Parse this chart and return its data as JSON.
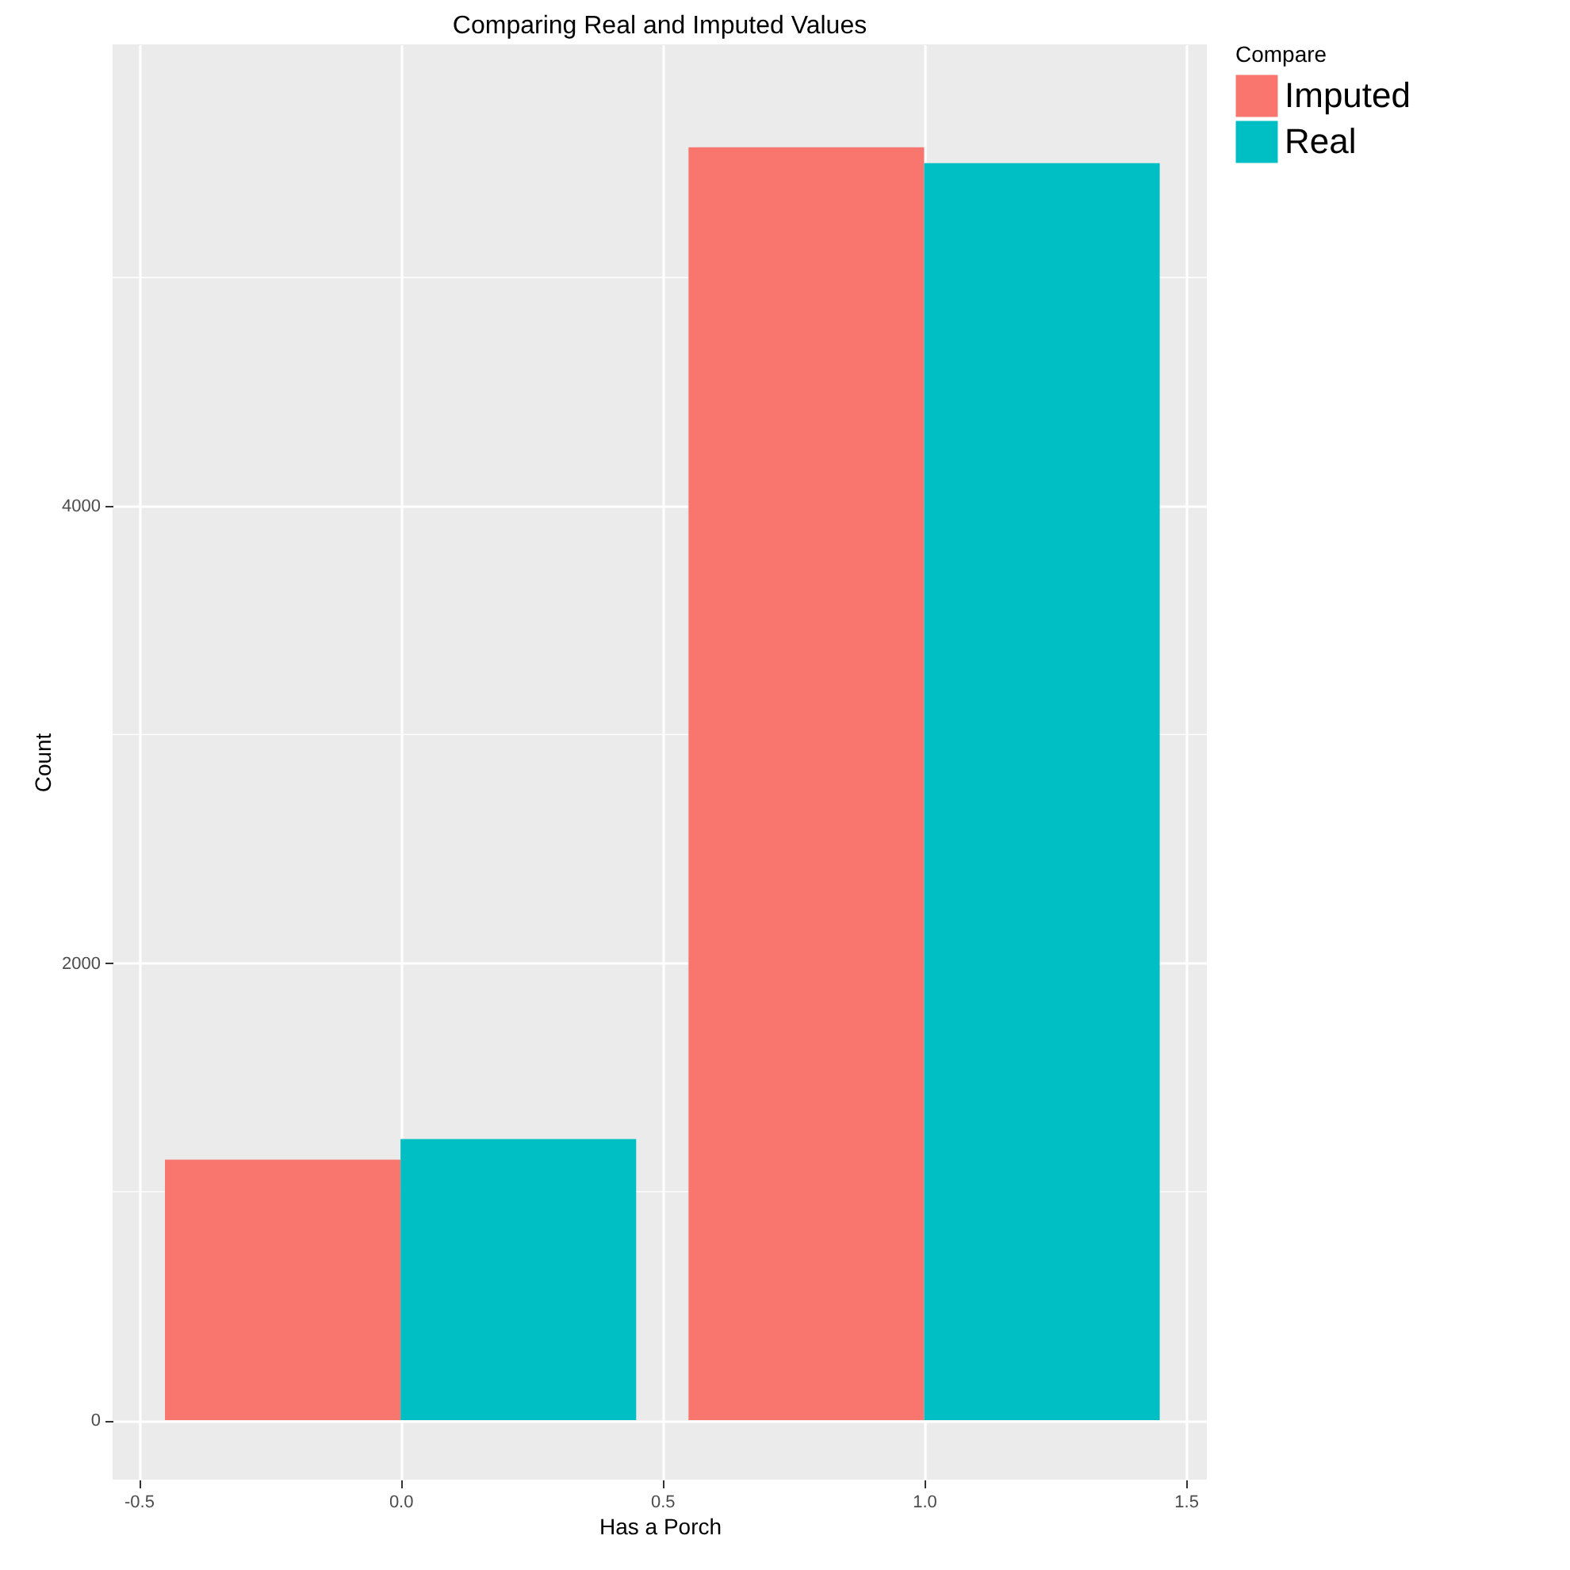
{
  "chart_data": {
    "type": "bar",
    "title": "Comparing Real and Imputed Values",
    "xlabel": "Has a Porch",
    "ylabel": "Count",
    "legend_title": "Compare",
    "x": [
      0,
      1
    ],
    "series": [
      {
        "name": "Imputed",
        "color": "#f8766d",
        "values": [
          1140,
          5570
        ]
      },
      {
        "name": "Real",
        "color": "#00bfc4",
        "values": [
          1230,
          5500
        ]
      }
    ],
    "xlim": [
      -0.55,
      1.54
    ],
    "xticks": [
      {
        "value": -0.5,
        "label": "-0.5"
      },
      {
        "value": 0,
        "label": "0.0"
      },
      {
        "value": 0.5,
        "label": "0.5"
      },
      {
        "value": 1,
        "label": "1.0"
      },
      {
        "value": 1.5,
        "label": "1.5"
      }
    ],
    "ylim": [
      -260,
      6020
    ],
    "yticks": [
      0,
      2000,
      4000
    ],
    "grid": true,
    "legend": "right"
  }
}
